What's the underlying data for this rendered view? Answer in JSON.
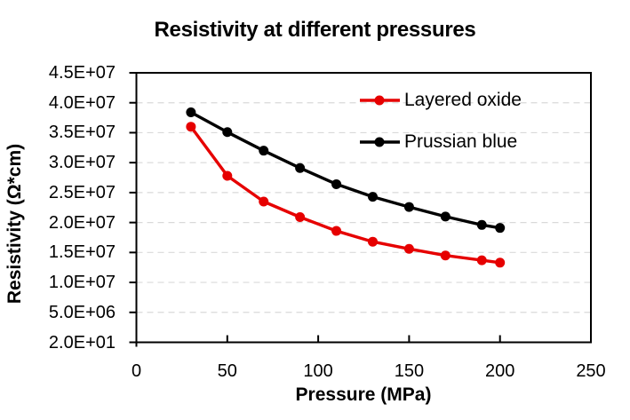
{
  "chart_data": {
    "type": "line",
    "title": "Resistivity at different pressures",
    "xlabel": "Pressure (MPa)",
    "ylabel": "Resistivity (Ω*cm)",
    "x": [
      30,
      50,
      70,
      90,
      110,
      130,
      150,
      170,
      190,
      200
    ],
    "series": [
      {
        "name": "Layered oxide",
        "color": "#e60000",
        "values": [
          36000000,
          27800000,
          23500000,
          20900000,
          18600000,
          16800000,
          15600000,
          14500000,
          13700000,
          13300000
        ]
      },
      {
        "name": "Prussian blue",
        "color": "#000000",
        "values": [
          38400000,
          35100000,
          32000000,
          29100000,
          26400000,
          24300000,
          22600000,
          21000000,
          19600000,
          19100000
        ]
      }
    ],
    "xlim": [
      0,
      250
    ],
    "ylim": [
      20,
      45000000
    ],
    "xticks": [
      {
        "label": "0",
        "value": 0
      },
      {
        "label": "50",
        "value": 50
      },
      {
        "label": "100",
        "value": 100
      },
      {
        "label": "150",
        "value": 150
      },
      {
        "label": "200",
        "value": 200
      },
      {
        "label": "250",
        "value": 250
      }
    ],
    "yticks": [
      {
        "label": "4.5E+07",
        "value": 45000000
      },
      {
        "label": "4.0E+07",
        "value": 40000000
      },
      {
        "label": "3.5E+07",
        "value": 35000000
      },
      {
        "label": "3.0E+07",
        "value": 30000000
      },
      {
        "label": "2.5E+07",
        "value": 25000000
      },
      {
        "label": "2.0E+07",
        "value": 20000000
      },
      {
        "label": "1.5E+07",
        "value": 15000000
      },
      {
        "label": "1.0E+07",
        "value": 10000000
      },
      {
        "label": "5.0E+06",
        "value": 5000000
      },
      {
        "label": "2.0E+01",
        "value": 20
      }
    ],
    "grid": "horizontal-dashed",
    "gridline_color": "#d9d9d9",
    "axis_color": "#000000",
    "background_color": "#ffffff",
    "legend_position": "inside-top-right",
    "marker": "circle"
  }
}
